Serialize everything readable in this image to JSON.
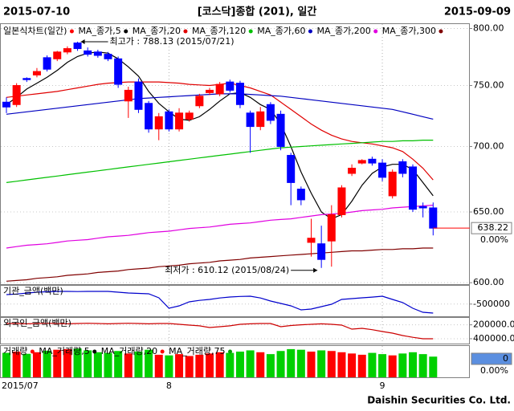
{
  "header": {
    "start": "2015-07-10",
    "title": "[코스닥]종합 (201), 일간",
    "end": "2015-09-09"
  },
  "footer": "Daishin Securities Co. Ltd.",
  "chart_data": [
    {
      "type": "candlestick",
      "legend_title": "일본식차트(일간)",
      "up_color": "#ff0000",
      "down_color": "#0000ff",
      "log_scale": true,
      "ylim": [
        599,
        804
      ],
      "yticks": [
        {
          "value": 800,
          "label": "800.00"
        },
        {
          "value": 750,
          "label": "750.00"
        },
        {
          "value": 700,
          "label": "700.00"
        },
        {
          "value": 650,
          "label": "650.00"
        },
        {
          "value": 600,
          "label": "600.00"
        }
      ],
      "categories": [
        "2015/07",
        null,
        null,
        null,
        null,
        null,
        null,
        null,
        null,
        null,
        null,
        null,
        null,
        null,
        null,
        null,
        "8",
        null,
        null,
        null,
        null,
        null,
        null,
        null,
        null,
        null,
        null,
        null,
        null,
        null,
        null,
        null,
        null,
        null,
        null,
        null,
        null,
        "9",
        null,
        null,
        null,
        null,
        null
      ],
      "open": [
        736,
        734,
        756,
        759,
        774,
        773,
        779,
        787,
        780,
        779,
        777,
        773,
        737,
        753,
        735,
        714,
        728,
        714,
        722,
        733,
        744,
        743,
        753,
        752,
        727,
        716,
        734,
        726,
        693,
        667,
        628,
        627,
        629,
        648,
        679,
        687,
        690,
        687,
        662,
        688,
        684,
        654,
        653
      ],
      "high": [
        740,
        752,
        757,
        765,
        776,
        780,
        784,
        788.13,
        783,
        781,
        779,
        775,
        749,
        756,
        737,
        727,
        730,
        731,
        729,
        743,
        748,
        753,
        755,
        754,
        729,
        732,
        736,
        729,
        695,
        669,
        645,
        640,
        655,
        670,
        686,
        690,
        692,
        690,
        682,
        690,
        686,
        657,
        657
      ],
      "low": [
        727,
        732,
        753,
        757,
        762,
        771,
        777,
        780,
        775,
        774,
        771,
        748,
        723,
        727,
        711,
        705,
        712,
        712,
        720,
        731,
        742,
        741,
        744,
        731,
        695,
        713,
        718,
        697,
        655,
        655,
        618,
        610.12,
        611,
        646,
        677,
        686,
        685,
        673,
        660,
        676,
        650,
        646,
        633
      ],
      "close": [
        732,
        750,
        755,
        762,
        764,
        779,
        782,
        782,
        777,
        776,
        773,
        751,
        746,
        730,
        714,
        724,
        714,
        727,
        727,
        741,
        746,
        751,
        746,
        734,
        716,
        728,
        721,
        700,
        672,
        659,
        631,
        616,
        648,
        668,
        683,
        689,
        687,
        676,
        680,
        679,
        652,
        653,
        638.22
      ],
      "series": [
        {
          "name": "MA_종가,5",
          "color": "#000000",
          "values": [
            734,
            740,
            747,
            752,
            757,
            763,
            770,
            775,
            778,
            779,
            778,
            773,
            766,
            758,
            745,
            735,
            728,
            722,
            721,
            724,
            730,
            737,
            743,
            744,
            740,
            734,
            730,
            718,
            700,
            680,
            664,
            650,
            645,
            648,
            658,
            670,
            679,
            684,
            686,
            686,
            682,
            672,
            662
          ]
        },
        {
          "name": "MA_종가,20",
          "color": "#e00000",
          "values": [
            740,
            741,
            742,
            743,
            744,
            745,
            746.5,
            748,
            749.5,
            751,
            752,
            752.5,
            753,
            753,
            753,
            753,
            752.5,
            752,
            751,
            750.5,
            750,
            751,
            752,
            750,
            748,
            745,
            742,
            736,
            730,
            724,
            718,
            713,
            709,
            706,
            704,
            703,
            702,
            700.5,
            699,
            696,
            690,
            683,
            674
          ]
        },
        {
          "name": "MA_종가,120",
          "color": "#00c000",
          "values": [
            672,
            673,
            674,
            675,
            676,
            677,
            678,
            679,
            680,
            681,
            682,
            683,
            684,
            685,
            686,
            687,
            688,
            689,
            690,
            691,
            692,
            693,
            694,
            695,
            696,
            697,
            698,
            699,
            699.5,
            700,
            700.5,
            701,
            701.5,
            702,
            702.5,
            703,
            703.5,
            704,
            704,
            704.5,
            704.5,
            705,
            705
          ]
        },
        {
          "name": "MA_종가,60",
          "color": "#0000c0",
          "values": [
            726,
            727,
            728,
            729,
            730,
            731,
            732,
            733,
            734,
            735,
            736,
            737,
            738,
            739,
            739.5,
            740,
            740.5,
            741,
            741.5,
            742,
            742.5,
            743,
            743,
            743,
            742.5,
            742,
            741.5,
            741,
            740,
            739,
            738,
            737,
            736,
            735,
            734,
            733,
            732,
            731,
            730,
            728,
            726,
            724,
            722
          ]
        },
        {
          "name": "MA_종가,200",
          "color": "#e000e0",
          "values": [
            624,
            625,
            626,
            626.5,
            627,
            628,
            629,
            629.5,
            630,
            631,
            632,
            632.5,
            633,
            634,
            635,
            635.5,
            636,
            637,
            638,
            638.5,
            639,
            640,
            641,
            641.5,
            642,
            643,
            644,
            644.5,
            645,
            646,
            647,
            648,
            648.5,
            649,
            650,
            651,
            651.5,
            652,
            653,
            653.5,
            654,
            654.5,
            655
          ]
        },
        {
          "name": "MA_종가,300",
          "color": "#800000",
          "values": [
            601,
            601.5,
            602,
            603,
            603.5,
            604,
            605,
            605.5,
            606,
            607,
            607.5,
            608,
            609,
            609.5,
            610,
            611,
            611.5,
            612,
            613,
            613.5,
            614,
            615,
            615.5,
            616,
            617,
            617.5,
            618,
            618.5,
            619,
            619.5,
            620,
            620.5,
            621,
            621.5,
            622,
            622,
            622.5,
            623,
            623,
            623.5,
            623.5,
            624,
            624
          ]
        }
      ],
      "annotations": [
        {
          "label": "최고가 : 788.13 (2015/07/21)",
          "value": 788.13
        },
        {
          "label": "최저가 : 610.12 (2015/08/24)",
          "value": 610.12
        }
      ],
      "last_value": 638.22,
      "last_change": "0.00%"
    },
    {
      "type": "line",
      "title": "기관_금액(백만)",
      "color": "#0000cc",
      "ylim": [
        -900000,
        100000
      ],
      "yticks": [
        -500000
      ],
      "values": [
        -189000,
        -170000,
        -140000,
        -110000,
        -95000,
        -84000,
        -84000,
        -90000,
        -84000,
        -84000,
        -84000,
        -110000,
        -137000,
        -150000,
        -163000,
        -295000,
        -637000,
        -558000,
        -426000,
        -380000,
        -347000,
        -300000,
        -268000,
        -250000,
        -242000,
        -300000,
        -400000,
        -480000,
        -558000,
        -689000,
        -663000,
        -584000,
        -505000,
        -347000,
        -320000,
        -295000,
        -270000,
        -242000,
        -347000,
        -450000,
        -637000,
        -768000,
        -795000
      ]
    },
    {
      "type": "line",
      "title": "외국인_금액(백만)",
      "color": "#cc0000",
      "ylim": [
        100000,
        470000
      ],
      "inverted": true,
      "yticks": [
        {
          "value": 200000,
          "label": "200000.00"
        },
        {
          "value": 400000,
          "label": "400000.00"
        }
      ],
      "values": [
        181000,
        181000,
        185000,
        181000,
        178000,
        181000,
        185000,
        181000,
        178000,
        181000,
        185000,
        181000,
        178000,
        181000,
        185000,
        181000,
        181000,
        192000,
        204000,
        215000,
        239000,
        227000,
        215000,
        192000,
        185000,
        181000,
        181000,
        227000,
        210000,
        200000,
        192000,
        185000,
        192000,
        204000,
        262000,
        250000,
        270000,
        297000,
        320000,
        354000,
        380000,
        401000,
        401000
      ]
    },
    {
      "type": "bar",
      "title": "거래량",
      "up_color": "#ff0000",
      "down_color": "#00d000",
      "ylim": [
        0,
        100
      ],
      "legend": [
        {
          "name": "MA_거래량,5",
          "color": "#000000"
        },
        {
          "name": "MA_거래량,20",
          "color": "#ff0000"
        },
        {
          "name": "MA_거래량,75",
          "color": "#00a000"
        }
      ],
      "values": [
        78,
        82,
        75,
        80,
        85,
        88,
        90,
        92,
        86,
        80,
        78,
        84,
        76,
        82,
        88,
        72,
        70,
        74,
        68,
        72,
        76,
        80,
        78,
        82,
        86,
        80,
        74,
        84,
        90,
        88,
        82,
        86,
        84,
        80,
        76,
        72,
        78,
        74,
        70,
        76,
        80,
        74,
        66
      ],
      "last_value": 0,
      "last_change": "0.00%"
    }
  ]
}
